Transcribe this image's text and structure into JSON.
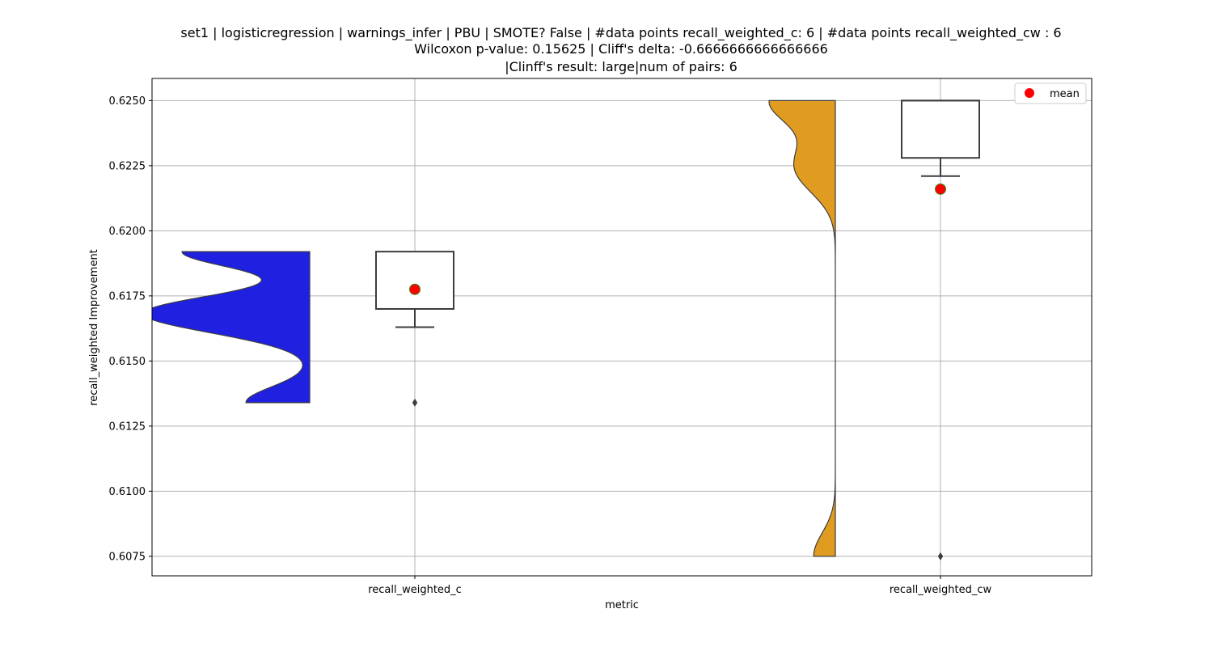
{
  "title_lines": [
    "set1 | logisticregression | warnings_infer | PBU | SMOTE? False | #data points recall_weighted_c: 6 | #data points recall_weighted_cw : 6",
    "Wilcoxon p-value: 0.15625 | Cliff's delta: -0.6666666666666666",
    "|Clinff's result: large|num of pairs: 6"
  ],
  "chart_data": {
    "type": "box",
    "title": "set1 | logisticregression | warnings_infer | PBU | SMOTE? False | #data points recall_weighted_c: 6 | #data points recall_weighted_cw : 6\nWilcoxon p-value: 0.15625 | Cliff's delta: -0.6666666666666666\n|Clinff's result: large|num of pairs: 6",
    "xlabel": "metric",
    "ylabel": "recall_weighted Improvement",
    "ylim": [
      0.60675,
      0.62585
    ],
    "yticks": [
      "0.6075",
      "0.6100",
      "0.6125",
      "0.6150",
      "0.6175",
      "0.6200",
      "0.6225",
      "0.6250"
    ],
    "grid": true,
    "legend": {
      "position": "top-right",
      "entries": [
        {
          "label": "mean",
          "color": "#ff0000"
        }
      ]
    },
    "categories": [
      "recall_weighted_c",
      "recall_weighted_cw"
    ],
    "series": [
      {
        "category": "recall_weighted_c",
        "color": "#2020e0",
        "box": {
          "min": 0.6163,
          "q1": 0.617,
          "median": 0.617,
          "q3": 0.6192,
          "max": 0.6192
        },
        "outliers": [
          0.6134
        ],
        "mean": 0.61775,
        "violin_range": [
          0.6134,
          0.6192
        ]
      },
      {
        "category": "recall_weighted_cw",
        "color": "#e09c20",
        "box": {
          "min": 0.6221,
          "q1": 0.6228,
          "median": 0.625,
          "q3": 0.625,
          "max": 0.625
        },
        "outliers": [
          0.6075
        ],
        "mean": 0.6216,
        "violin_range": [
          0.6075,
          0.625
        ]
      }
    ]
  }
}
